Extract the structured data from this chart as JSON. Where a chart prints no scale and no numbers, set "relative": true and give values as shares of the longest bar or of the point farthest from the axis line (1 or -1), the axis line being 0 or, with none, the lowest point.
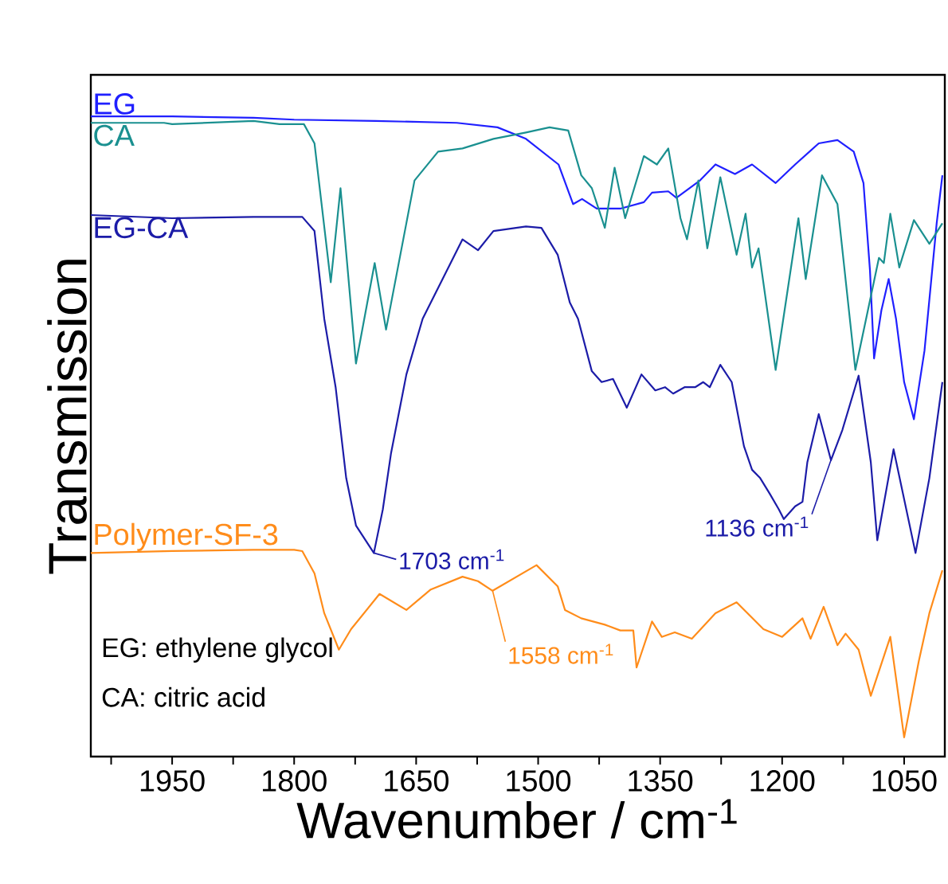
{
  "chart_data": {
    "type": "line",
    "relative": true,
    "xlabel": "Wavenumber / cm$^{-1}$",
    "ylabel": "Transmission",
    "xlim": [
      2050,
      1000
    ],
    "xticks": [
      {
        "value": 2025,
        "label": null
      },
      1950,
      {
        "value": 1875,
        "label": null
      },
      1800,
      {
        "value": 1725,
        "label": null
      },
      1650,
      {
        "value": 1575,
        "label": null
      },
      1500,
      {
        "value": 1425,
        "label": null
      },
      1350,
      {
        "value": 1275,
        "label": null
      },
      1200,
      {
        "value": 1125,
        "label": null
      },
      1050
    ],
    "series": [
      {
        "name": "EG",
        "color": "#2020ff",
        "x": [
          2050,
          1950,
          1850,
          1800,
          1700,
          1600,
          1550,
          1515,
          1475,
          1457,
          1446,
          1428,
          1399,
          1370,
          1360,
          1340,
          1330,
          1301,
          1282,
          1258,
          1237,
          1208,
          1184,
          1155,
          1132,
          1112,
          1100,
          1092,
          1087,
          1078,
          1069,
          1060,
          1050,
          1038,
          1025,
          1010,
          1003
        ],
        "values": [
          1.0,
          1.0,
          0.998,
          0.995,
          0.993,
          0.99,
          0.983,
          0.965,
          0.925,
          0.863,
          0.871,
          0.856,
          0.856,
          0.866,
          0.881,
          0.883,
          0.873,
          0.9,
          0.925,
          0.91,
          0.925,
          0.896,
          0.925,
          0.958,
          0.963,
          0.945,
          0.896,
          0.759,
          0.622,
          0.697,
          0.746,
          0.684,
          0.585,
          0.527,
          0.634,
          0.833,
          0.908
        ]
      },
      {
        "name": "CA",
        "color": "#1a9090",
        "x": [
          2050,
          1960,
          1950,
          1850,
          1818,
          1788,
          1775,
          1755,
          1743,
          1724,
          1701,
          1687,
          1652,
          1623,
          1593,
          1555,
          1515,
          1486,
          1463,
          1447,
          1434,
          1418,
          1406,
          1393,
          1370,
          1354,
          1340,
          1325,
          1317,
          1303,
          1292,
          1276,
          1256,
          1245,
          1237,
          1229,
          1208,
          1180,
          1171,
          1151,
          1132,
          1110,
          1081,
          1075,
          1067,
          1056,
          1038,
          1019,
          1003
        ],
        "values": [
          0.99,
          0.99,
          0.988,
          0.993,
          0.988,
          0.988,
          0.958,
          0.741,
          0.888,
          0.614,
          0.771,
          0.667,
          0.9,
          0.945,
          0.95,
          0.965,
          0.975,
          0.983,
          0.978,
          0.908,
          0.888,
          0.826,
          0.92,
          0.841,
          0.938,
          0.925,
          0.95,
          0.841,
          0.808,
          0.9,
          0.794,
          0.905,
          0.784,
          0.848,
          0.764,
          0.794,
          0.604,
          0.841,
          0.746,
          0.908,
          0.863,
          0.604,
          0.779,
          0.771,
          0.848,
          0.764,
          0.838,
          0.801,
          0.833
        ]
      },
      {
        "name": "EG-CA",
        "color": "#1c1ca8",
        "x": [
          2050,
          1950,
          1850,
          1790,
          1775,
          1763,
          1749,
          1736,
          1724,
          1702,
          1691,
          1681,
          1662,
          1642,
          1593,
          1574,
          1555,
          1515,
          1496,
          1476,
          1461,
          1451,
          1434,
          1422,
          1408,
          1391,
          1373,
          1356,
          1344,
          1334,
          1320,
          1307,
          1297,
          1289,
          1276,
          1262,
          1247,
          1237,
          1227,
          1215,
          1204,
          1198,
          1184,
          1175,
          1169,
          1155,
          1140,
          1126,
          1106,
          1091,
          1083,
          1063,
          1036,
          1019,
          1003
        ],
        "values": [
          0.846,
          0.841,
          0.843,
          0.843,
          0.821,
          0.684,
          0.577,
          0.435,
          0.361,
          0.318,
          0.386,
          0.473,
          0.597,
          0.684,
          0.808,
          0.791,
          0.821,
          0.828,
          0.826,
          0.784,
          0.709,
          0.684,
          0.602,
          0.585,
          0.59,
          0.545,
          0.597,
          0.572,
          0.577,
          0.567,
          0.577,
          0.577,
          0.585,
          0.577,
          0.612,
          0.585,
          0.485,
          0.448,
          0.435,
          0.41,
          0.386,
          0.371,
          0.391,
          0.398,
          0.46,
          0.535,
          0.463,
          0.51,
          0.595,
          0.46,
          0.338,
          0.48,
          0.318,
          0.435,
          0.585
        ]
      },
      {
        "name": "Polymer-SF-3",
        "color": "#ff8c1a",
        "x": [
          2050,
          1950,
          1850,
          1800,
          1790,
          1775,
          1763,
          1745,
          1730,
          1695,
          1662,
          1632,
          1593,
          1574,
          1556,
          1502,
          1476,
          1467,
          1447,
          1418,
          1399,
          1383,
          1379,
          1360,
          1348,
          1332,
          1311,
          1282,
          1256,
          1223,
          1200,
          1175,
          1165,
          1149,
          1132,
          1122,
          1106,
          1091,
          1067,
          1050,
          1032,
          1019,
          1003
        ],
        "values": [
          0.318,
          0.321,
          0.323,
          0.323,
          0.321,
          0.286,
          0.224,
          0.167,
          0.199,
          0.254,
          0.229,
          0.261,
          0.281,
          0.274,
          0.259,
          0.299,
          0.266,
          0.229,
          0.216,
          0.206,
          0.197,
          0.197,
          0.139,
          0.211,
          0.187,
          0.194,
          0.184,
          0.224,
          0.241,
          0.199,
          0.187,
          0.216,
          0.184,
          0.234,
          0.174,
          0.192,
          0.167,
          0.095,
          0.187,
          0.03,
          0.149,
          0.224,
          0.291
        ]
      }
    ],
    "annotations": [
      {
        "text": "1703 cm$^{-1}$",
        "x": 1702,
        "y": 0.318
      },
      {
        "text": "1136 cm$^{-1}$",
        "x": 1140,
        "y": 0.463
      },
      {
        "text": "1558 cm$^{-1}$",
        "x": 1556,
        "y": 0.259
      },
      "EG: ethylene glycol",
      "CA: citric acid"
    ]
  }
}
